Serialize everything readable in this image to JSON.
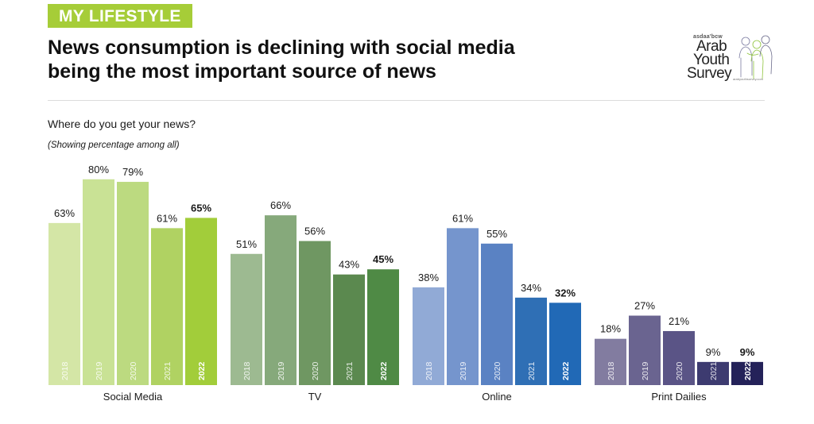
{
  "header": {
    "tag": "MY LIFESTYLE",
    "title_line1": "News consumption is declining with social media",
    "title_line2": "being the most important source of news"
  },
  "logo": {
    "brand": "asdaa'bcw",
    "line1": "Arab",
    "line2": "Youth",
    "line3": "Survey",
    "url": "arabyouthsurvey.com"
  },
  "question": "Where do you get your news?",
  "note": "(Showing percentage among all)",
  "chart_data": {
    "type": "bar",
    "title": "Where do you get your news?",
    "subtitle": "(Showing percentage among all)",
    "years": [
      "2018",
      "2019",
      "2020",
      "2021",
      "2022"
    ],
    "value_suffix": "%",
    "ylim": [
      0,
      80
    ],
    "grid": false,
    "highlight_year": "2022",
    "groups": [
      {
        "name": "Social Media",
        "values": [
          63,
          80,
          79,
          61,
          65
        ],
        "colors": [
          "#d4e6a6",
          "#c9e295",
          "#bcda80",
          "#b0d262",
          "#a2cd3a"
        ]
      },
      {
        "name": "TV",
        "values": [
          51,
          66,
          56,
          43,
          45
        ],
        "colors": [
          "#9dba91",
          "#86a97b",
          "#6f9762",
          "#5b894f",
          "#4f8a45"
        ]
      },
      {
        "name": "Online",
        "values": [
          38,
          61,
          55,
          34,
          32
        ],
        "colors": [
          "#91aad6",
          "#7595cd",
          "#5a82c3",
          "#2f6fb5",
          "#2169b6"
        ]
      },
      {
        "name": "Print Dailies",
        "values": [
          18,
          27,
          21,
          9,
          9
        ],
        "colors": [
          "#827ca0",
          "#6a6490",
          "#5a5486",
          "#3d3b70",
          "#242259"
        ]
      }
    ]
  }
}
